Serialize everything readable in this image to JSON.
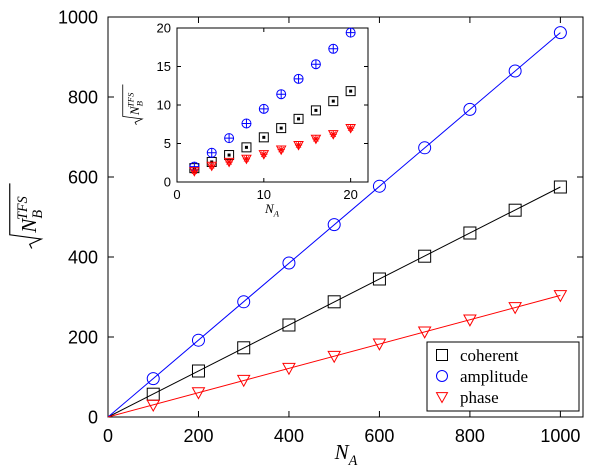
{
  "chart_data": [
    {
      "type": "scatter",
      "role": "main",
      "xlabel": "N",
      "xlabel_sub": "A",
      "ylabel_base": "N",
      "ylabel_sub": "B",
      "ylabel_sup": "TFS",
      "xlim": [
        0,
        1050
      ],
      "ylim": [
        0,
        1000
      ],
      "xticks": [
        0,
        200,
        400,
        600,
        800,
        1000
      ],
      "yticks": [
        0,
        200,
        400,
        600,
        800,
        1000
      ],
      "grid": false,
      "legend": "bottom-right",
      "series": [
        {
          "name": "coherent",
          "marker": "square",
          "color": "#000000",
          "x": [
            100,
            200,
            300,
            400,
            500,
            600,
            700,
            800,
            900,
            1000
          ],
          "y": [
            57,
            115,
            173,
            230,
            288,
            345,
            402,
            460,
            517,
            575
          ],
          "fit_line": [
            [
              0,
              0
            ],
            [
              1000,
              575
            ]
          ]
        },
        {
          "name": "amplitude",
          "marker": "circle",
          "color": "#0000ff",
          "x": [
            100,
            200,
            300,
            400,
            500,
            600,
            700,
            800,
            900,
            1000
          ],
          "y": [
            96,
            192,
            288,
            385,
            481,
            577,
            673,
            769,
            865,
            961
          ],
          "fit_line": [
            [
              0,
              0
            ],
            [
              1000,
              961
            ]
          ]
        },
        {
          "name": "phase",
          "marker": "triangle-down",
          "color": "#ff0000",
          "x": [
            100,
            200,
            300,
            400,
            500,
            600,
            700,
            800,
            900,
            1000
          ],
          "y": [
            30,
            61,
            92,
            122,
            152,
            183,
            213,
            243,
            274,
            304
          ],
          "fit_line": [
            [
              0,
              0
            ],
            [
              1000,
              304
            ]
          ]
        }
      ]
    },
    {
      "type": "scatter",
      "role": "inset",
      "xlabel": "N",
      "xlabel_sub": "A",
      "ylabel_base": "N",
      "ylabel_sub": "B",
      "ylabel_sup": "TFS",
      "xlim": [
        0,
        22
      ],
      "ylim": [
        0,
        20
      ],
      "xticks": [
        0,
        10,
        20
      ],
      "yticks": [
        0,
        5,
        10,
        15,
        20
      ],
      "grid": false,
      "series": [
        {
          "name": "coherent",
          "marker": "square-dot",
          "color": "#000000",
          "x": [
            2,
            4,
            6,
            8,
            10,
            12,
            14,
            16,
            18,
            20
          ],
          "y": [
            1.8,
            2.6,
            3.5,
            4.5,
            5.8,
            7.0,
            8.2,
            9.3,
            10.5,
            11.8
          ]
        },
        {
          "name": "amplitude",
          "marker": "circle-plus",
          "color": "#0000ff",
          "x": [
            2,
            4,
            6,
            8,
            10,
            12,
            14,
            16,
            18,
            20
          ],
          "y": [
            2.0,
            3.8,
            5.7,
            7.6,
            9.5,
            11.4,
            13.4,
            15.3,
            17.3,
            19.4
          ]
        },
        {
          "name": "phase",
          "marker": "triangle-star",
          "color": "#ff0000",
          "x": [
            2,
            4,
            6,
            8,
            10,
            12,
            14,
            16,
            18,
            20
          ],
          "y": [
            1.4,
            2.1,
            2.6,
            3.0,
            3.6,
            4.2,
            4.8,
            5.6,
            6.2,
            7.0
          ]
        }
      ]
    }
  ]
}
